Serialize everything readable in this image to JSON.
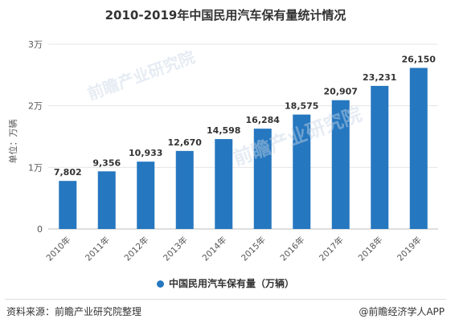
{
  "chart_data": {
    "type": "bar",
    "title": "2010-2019年中国民用汽车保有量统计情况",
    "ylabel": "单位：万辆",
    "categories": [
      "2010年",
      "2011年",
      "2012年",
      "2013年",
      "2014年",
      "2015年",
      "2016年",
      "2017年",
      "2018年",
      "2019年"
    ],
    "series": [
      {
        "name": "中国民用汽车保有量（万辆）",
        "values": [
          7802,
          9356,
          10933,
          12670,
          14598,
          16284,
          18575,
          20907,
          23231,
          26150
        ],
        "labels": [
          "7,802",
          "9,356",
          "10,933",
          "12,670",
          "14,598",
          "16,284",
          "18,575",
          "20,907",
          "23,231",
          "26,150"
        ]
      }
    ],
    "ylim": [
      0,
      30000
    ],
    "yticks": [
      0,
      10000,
      20000,
      30000
    ],
    "ytick_labels": [
      "0",
      "1万",
      "2万",
      "3万"
    ],
    "grid": true,
    "legend_position": "bottom",
    "bar_color": "#2577bf"
  },
  "footer": {
    "source": "资料来源：前瞻产业研究院整理",
    "brand": "@前瞻经济学人APP"
  },
  "watermark": {
    "text": "前瞻产业研究院"
  }
}
